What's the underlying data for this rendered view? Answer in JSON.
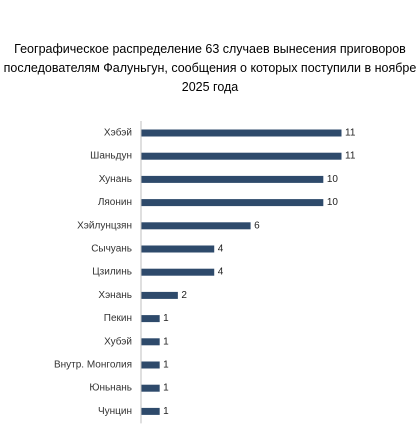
{
  "chart_data": {
    "type": "bar",
    "orientation": "horizontal",
    "title": "Географическое распределение 63 случаев вынесения приговоров последователям Фалуньгун, сообщения о которых поступили в ноябре 2025 года",
    "categories": [
      "Хэбэй",
      "Шаньдун",
      "Хунань",
      "Ляонин",
      "Хэйлунцзян",
      "Сычуань",
      "Цзилинь",
      "Хэнань",
      "Пекин",
      "Хубэй",
      "Внутр. Монголия",
      "Юньнань",
      "Чунцин"
    ],
    "values": [
      11,
      11,
      10,
      10,
      6,
      4,
      4,
      2,
      1,
      1,
      1,
      1,
      1
    ],
    "xlim": [
      0,
      11
    ],
    "grid": false,
    "legend": "none",
    "data_labels": true,
    "colors": {
      "bar": "#2e4a6b",
      "axis": "#bfbfbf"
    }
  }
}
